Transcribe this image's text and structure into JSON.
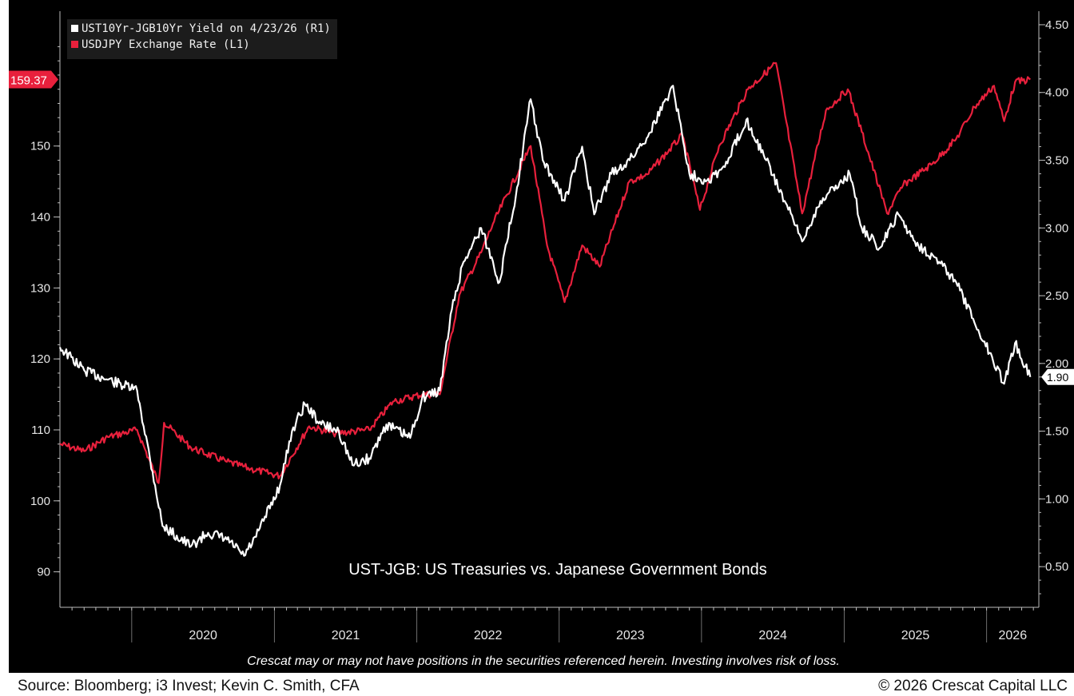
{
  "chart_data": {
    "type": "line",
    "x_axis": {
      "tick_labels": [
        "2020",
        "2021",
        "2022",
        "2023",
        "2024",
        "2025",
        "2026"
      ],
      "range": [
        "2019-07-01",
        "2026-05-15"
      ]
    },
    "y_left": {
      "ticks": [
        90,
        100,
        110,
        120,
        130,
        140,
        150
      ],
      "range": [
        85,
        169
      ]
    },
    "y_right": {
      "ticks": [
        "0.50",
        "1.00",
        "1.50",
        "2.00",
        "2.50",
        "3.00",
        "3.50",
        "4.00",
        "4.50"
      ],
      "range": [
        0.2,
        4.6
      ]
    },
    "series": [
      {
        "name": "UST10Yr-JGB10Yr Yield on 4/23/26 (R1)",
        "axis": "right",
        "color": "#ffffff",
        "last_value_label": "1.90",
        "points": [
          [
            "2019-07-01",
            2.12
          ],
          [
            "2019-09-01",
            1.95
          ],
          [
            "2019-11-01",
            1.88
          ],
          [
            "2020-01-15",
            1.8
          ],
          [
            "2020-03-01",
            1.1
          ],
          [
            "2020-03-20",
            0.8
          ],
          [
            "2020-06-01",
            0.65
          ],
          [
            "2020-07-15",
            0.75
          ],
          [
            "2020-09-01",
            0.7
          ],
          [
            "2020-10-15",
            0.58
          ],
          [
            "2020-11-15",
            0.72
          ],
          [
            "2021-01-15",
            1.1
          ],
          [
            "2021-02-15",
            1.5
          ],
          [
            "2021-03-20",
            1.7
          ],
          [
            "2021-05-01",
            1.55
          ],
          [
            "2021-06-15",
            1.5
          ],
          [
            "2021-07-20",
            1.25
          ],
          [
            "2021-09-01",
            1.3
          ],
          [
            "2021-10-15",
            1.55
          ],
          [
            "2021-12-15",
            1.45
          ],
          [
            "2022-01-15",
            1.75
          ],
          [
            "2022-03-01",
            1.8
          ],
          [
            "2022-04-01",
            2.4
          ],
          [
            "2022-05-01",
            2.75
          ],
          [
            "2022-06-15",
            3.0
          ],
          [
            "2022-08-01",
            2.6
          ],
          [
            "2022-09-15",
            3.3
          ],
          [
            "2022-10-20",
            3.95
          ],
          [
            "2022-11-20",
            3.5
          ],
          [
            "2023-01-15",
            3.2
          ],
          [
            "2023-03-01",
            3.6
          ],
          [
            "2023-04-01",
            3.1
          ],
          [
            "2023-05-15",
            3.4
          ],
          [
            "2023-07-01",
            3.5
          ],
          [
            "2023-08-20",
            3.7
          ],
          [
            "2023-10-20",
            4.05
          ],
          [
            "2023-12-01",
            3.4
          ],
          [
            "2024-01-15",
            3.35
          ],
          [
            "2024-03-01",
            3.45
          ],
          [
            "2024-04-25",
            3.8
          ],
          [
            "2024-06-15",
            3.5
          ],
          [
            "2024-08-01",
            3.2
          ],
          [
            "2024-09-15",
            2.9
          ],
          [
            "2024-11-01",
            3.2
          ],
          [
            "2025-01-15",
            3.4
          ],
          [
            "2025-02-15",
            3.0
          ],
          [
            "2025-04-01",
            2.85
          ],
          [
            "2025-05-20",
            3.1
          ],
          [
            "2025-07-01",
            2.9
          ],
          [
            "2025-09-01",
            2.75
          ],
          [
            "2025-10-15",
            2.6
          ],
          [
            "2025-12-01",
            2.3
          ],
          [
            "2026-01-15",
            2.05
          ],
          [
            "2026-02-15",
            1.85
          ],
          [
            "2026-03-15",
            2.15
          ],
          [
            "2026-04-23",
            1.9
          ]
        ]
      },
      {
        "name": "USDJPY Exchange Rate (L1)",
        "axis": "left",
        "color": "#e8203c",
        "last_value_label": "159.37",
        "points": [
          [
            "2019-07-01",
            108.0
          ],
          [
            "2019-09-01",
            107.0
          ],
          [
            "2019-11-01",
            109.0
          ],
          [
            "2020-01-15",
            110.0
          ],
          [
            "2020-03-10",
            102.5
          ],
          [
            "2020-03-24",
            111.0
          ],
          [
            "2020-06-01",
            107.5
          ],
          [
            "2020-09-01",
            105.5
          ],
          [
            "2020-11-01",
            104.5
          ],
          [
            "2021-01-15",
            103.5
          ],
          [
            "2021-03-31",
            110.5
          ],
          [
            "2021-06-01",
            109.5
          ],
          [
            "2021-09-01",
            110.0
          ],
          [
            "2021-11-01",
            114.0
          ],
          [
            "2022-01-15",
            115.0
          ],
          [
            "2022-03-01",
            115.0
          ],
          [
            "2022-04-20",
            129.0
          ],
          [
            "2022-06-15",
            135.0
          ],
          [
            "2022-07-15",
            139.0
          ],
          [
            "2022-10-20",
            150.0
          ],
          [
            "2022-12-01",
            136.0
          ],
          [
            "2023-01-15",
            128.0
          ],
          [
            "2023-03-01",
            136.0
          ],
          [
            "2023-04-15",
            133.0
          ],
          [
            "2023-06-30",
            145.0
          ],
          [
            "2023-08-15",
            146.0
          ],
          [
            "2023-11-13",
            151.5
          ],
          [
            "2023-12-28",
            141.0
          ],
          [
            "2024-02-15",
            150.0
          ],
          [
            "2024-04-29",
            158.0
          ],
          [
            "2024-07-10",
            161.7
          ],
          [
            "2024-09-15",
            140.5
          ],
          [
            "2024-11-15",
            155.0
          ],
          [
            "2025-01-10",
            158.0
          ],
          [
            "2025-02-15",
            152.0
          ],
          [
            "2025-04-21",
            140.5
          ],
          [
            "2025-06-01",
            144.5
          ],
          [
            "2025-08-15",
            147.5
          ],
          [
            "2025-10-15",
            151.0
          ],
          [
            "2025-12-01",
            155.5
          ],
          [
            "2026-01-20",
            158.5
          ],
          [
            "2026-02-15",
            153.5
          ],
          [
            "2026-03-15",
            159.0
          ],
          [
            "2026-04-23",
            159.37
          ]
        ]
      }
    ],
    "annotation": "UST-JGB: US Treasuries vs. Japanese Government Bonds",
    "disclaimer": "Crescat may or may not have positions in the securities referenced herein. Investing involves risk of loss.",
    "legend_position": "top-left",
    "grid": false,
    "background": "#000000"
  },
  "footer": {
    "source": "Source: Bloomberg; i3 Invest; Kevin C. Smith, CFA",
    "copyright": "© 2026 Crescat Capital LLC"
  }
}
